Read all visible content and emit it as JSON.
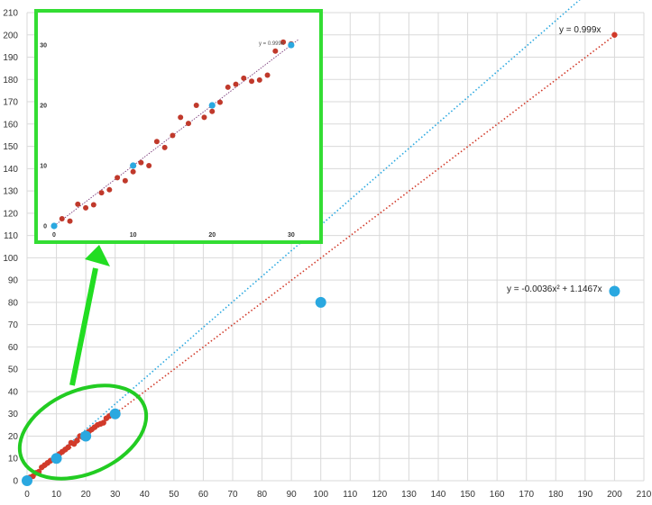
{
  "chart_data": {
    "type": "scatter",
    "xlim": [
      0,
      210
    ],
    "ylim": [
      0,
      210
    ],
    "x_ticks": [
      0,
      10,
      20,
      30,
      40,
      50,
      60,
      70,
      80,
      90,
      100,
      110,
      120,
      130,
      140,
      150,
      160,
      170,
      180,
      190,
      200,
      210
    ],
    "y_ticks": [
      0,
      10,
      20,
      30,
      40,
      50,
      60,
      70,
      80,
      90,
      100,
      110,
      120,
      130,
      140,
      150,
      160,
      170,
      180,
      190,
      200,
      210
    ],
    "grid": true,
    "series": [
      {
        "color": "#d13a2a",
        "points": [
          [
            0.5,
            0.5
          ],
          [
            1,
            1.5
          ],
          [
            2,
            2
          ],
          [
            3,
            3.5
          ],
          [
            4,
            4
          ],
          [
            5,
            6
          ],
          [
            6,
            7
          ],
          [
            7,
            8
          ],
          [
            8,
            9
          ],
          [
            9,
            9.5
          ],
          [
            10,
            11
          ],
          [
            11,
            12
          ],
          [
            12,
            13
          ],
          [
            13,
            14
          ],
          [
            14,
            15
          ],
          [
            15,
            17
          ],
          [
            16,
            16.5
          ],
          [
            17,
            18
          ],
          [
            18,
            20
          ],
          [
            19,
            19.5
          ],
          [
            20,
            21
          ],
          [
            21,
            22
          ],
          [
            22,
            23
          ],
          [
            23,
            24
          ],
          [
            24,
            25
          ],
          [
            25,
            25.5
          ],
          [
            26,
            26
          ],
          [
            27,
            28
          ],
          [
            28,
            29
          ],
          [
            29,
            30
          ],
          [
            30,
            31
          ],
          [
            200,
            200
          ]
        ]
      },
      {
        "color": "#2aa8e0",
        "points": [
          [
            0,
            0
          ],
          [
            10,
            10
          ],
          [
            20,
            20
          ],
          [
            30,
            30
          ],
          [
            100,
            80
          ],
          [
            200,
            85
          ]
        ]
      }
    ],
    "trendlines": [
      {
        "series": 0,
        "label": "y = 0.999x",
        "coef": [
          0,
          0.999
        ]
      },
      {
        "series": 1,
        "label": "y = -0.0036x² + 1.1467x",
        "coef": [
          -0.0036,
          1.1467
        ]
      }
    ],
    "inset": {
      "x_ticks": [
        0,
        10,
        20,
        30
      ],
      "y_ticks": [
        0,
        10,
        20,
        30
      ],
      "xlim": [
        0,
        31.5
      ],
      "ylim": [
        0,
        31.5
      ],
      "red_points": [
        [
          1,
          1.2
        ],
        [
          2,
          0.8
        ],
        [
          3,
          3.6
        ],
        [
          4,
          3
        ],
        [
          5,
          3.5
        ],
        [
          6,
          5.5
        ],
        [
          7,
          6
        ],
        [
          8,
          8
        ],
        [
          9,
          7.5
        ],
        [
          10,
          9
        ],
        [
          11,
          10.5
        ],
        [
          12,
          10
        ],
        [
          13,
          14
        ],
        [
          14,
          13
        ],
        [
          15,
          15
        ],
        [
          16,
          18
        ],
        [
          17,
          17
        ],
        [
          18,
          20
        ],
        [
          19,
          18
        ],
        [
          20,
          19
        ],
        [
          21,
          20.5
        ],
        [
          22,
          23
        ],
        [
          23,
          23.5
        ],
        [
          24,
          24.5
        ],
        [
          25,
          24
        ],
        [
          26,
          24.2
        ],
        [
          27,
          25
        ],
        [
          28,
          29
        ],
        [
          29,
          30.5
        ],
        [
          30,
          30.2
        ]
      ],
      "blue_points": [
        [
          0,
          0
        ],
        [
          10,
          10
        ],
        [
          20,
          20
        ],
        [
          30,
          30
        ]
      ],
      "label": "y = 0.999x"
    }
  }
}
